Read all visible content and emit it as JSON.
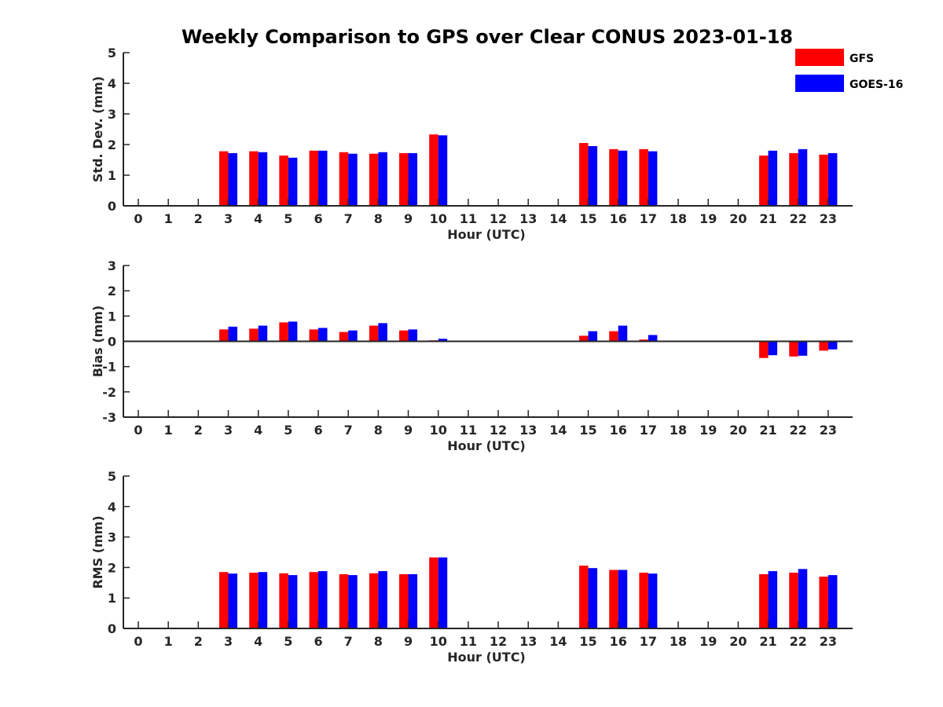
{
  "title": "Weekly Comparison to GPS over Clear CONUS 2023-01-18",
  "legend": [
    {
      "name": "GFS",
      "color": "#ff0000"
    },
    {
      "name": "GOES-16",
      "color": "#0000ff"
    }
  ],
  "chart_data": [
    {
      "type": "bar",
      "title": "Weekly Comparison to GPS over Clear CONUS 2023-01-18",
      "xlabel": "Hour (UTC)",
      "ylabel": "Std. Dev. (mm)",
      "ylim": [
        0,
        5
      ],
      "yticks": [
        0,
        1,
        2,
        3,
        4,
        5
      ],
      "categories": [
        "0",
        "1",
        "2",
        "3",
        "4",
        "5",
        "6",
        "7",
        "8",
        "9",
        "10",
        "11",
        "12",
        "13",
        "14",
        "15",
        "16",
        "17",
        "18",
        "19",
        "20",
        "21",
        "22",
        "23"
      ],
      "series": [
        {
          "name": "GFS",
          "color": "#ff0000",
          "values": [
            null,
            null,
            null,
            1.78,
            1.78,
            1.64,
            1.8,
            1.75,
            1.7,
            1.72,
            2.33,
            null,
            null,
            null,
            null,
            2.05,
            1.85,
            1.85,
            null,
            null,
            null,
            1.64,
            1.72,
            1.67
          ]
        },
        {
          "name": "GOES-16",
          "color": "#0000ff",
          "values": [
            null,
            null,
            null,
            1.72,
            1.75,
            1.57,
            1.8,
            1.7,
            1.75,
            1.72,
            2.3,
            null,
            null,
            null,
            null,
            1.95,
            1.8,
            1.78,
            null,
            null,
            null,
            1.8,
            1.85,
            1.72
          ]
        }
      ]
    },
    {
      "type": "bar",
      "xlabel": "Hour (UTC)",
      "ylabel": "Bias (mm)",
      "ylim": [
        -3,
        3
      ],
      "yticks": [
        -3,
        -2,
        -1,
        0,
        1,
        2,
        3
      ],
      "categories": [
        "0",
        "1",
        "2",
        "3",
        "4",
        "5",
        "6",
        "7",
        "8",
        "9",
        "10",
        "11",
        "12",
        "13",
        "14",
        "15",
        "16",
        "17",
        "18",
        "19",
        "20",
        "21",
        "22",
        "23"
      ],
      "series": [
        {
          "name": "GFS",
          "color": "#ff0000",
          "values": [
            null,
            null,
            null,
            0.47,
            0.5,
            0.75,
            0.47,
            0.37,
            0.62,
            0.43,
            0.04,
            null,
            null,
            null,
            null,
            0.22,
            0.4,
            0.07,
            null,
            null,
            null,
            -0.66,
            -0.6,
            -0.37
          ]
        },
        {
          "name": "GOES-16",
          "color": "#0000ff",
          "values": [
            null,
            null,
            null,
            0.58,
            0.62,
            0.78,
            0.53,
            0.43,
            0.72,
            0.47,
            0.1,
            null,
            null,
            null,
            null,
            0.4,
            0.62,
            0.25,
            null,
            null,
            null,
            -0.55,
            -0.57,
            -0.32
          ]
        }
      ]
    },
    {
      "type": "bar",
      "xlabel": "Hour (UTC)",
      "ylabel": "RMS (mm)",
      "ylim": [
        0,
        5
      ],
      "yticks": [
        0,
        1,
        2,
        3,
        4,
        5
      ],
      "categories": [
        "0",
        "1",
        "2",
        "3",
        "4",
        "5",
        "6",
        "7",
        "8",
        "9",
        "10",
        "11",
        "12",
        "13",
        "14",
        "15",
        "16",
        "17",
        "18",
        "19",
        "20",
        "21",
        "22",
        "23"
      ],
      "series": [
        {
          "name": "GFS",
          "color": "#ff0000",
          "values": [
            null,
            null,
            null,
            1.85,
            1.83,
            1.81,
            1.85,
            1.78,
            1.81,
            1.78,
            2.33,
            null,
            null,
            null,
            null,
            2.06,
            1.92,
            1.83,
            null,
            null,
            null,
            1.78,
            1.83,
            1.7
          ]
        },
        {
          "name": "GOES-16",
          "color": "#0000ff",
          "values": [
            null,
            null,
            null,
            1.8,
            1.85,
            1.75,
            1.88,
            1.75,
            1.88,
            1.78,
            2.33,
            null,
            null,
            null,
            null,
            1.98,
            1.92,
            1.8,
            null,
            null,
            null,
            1.88,
            1.95,
            1.75
          ]
        }
      ]
    }
  ]
}
